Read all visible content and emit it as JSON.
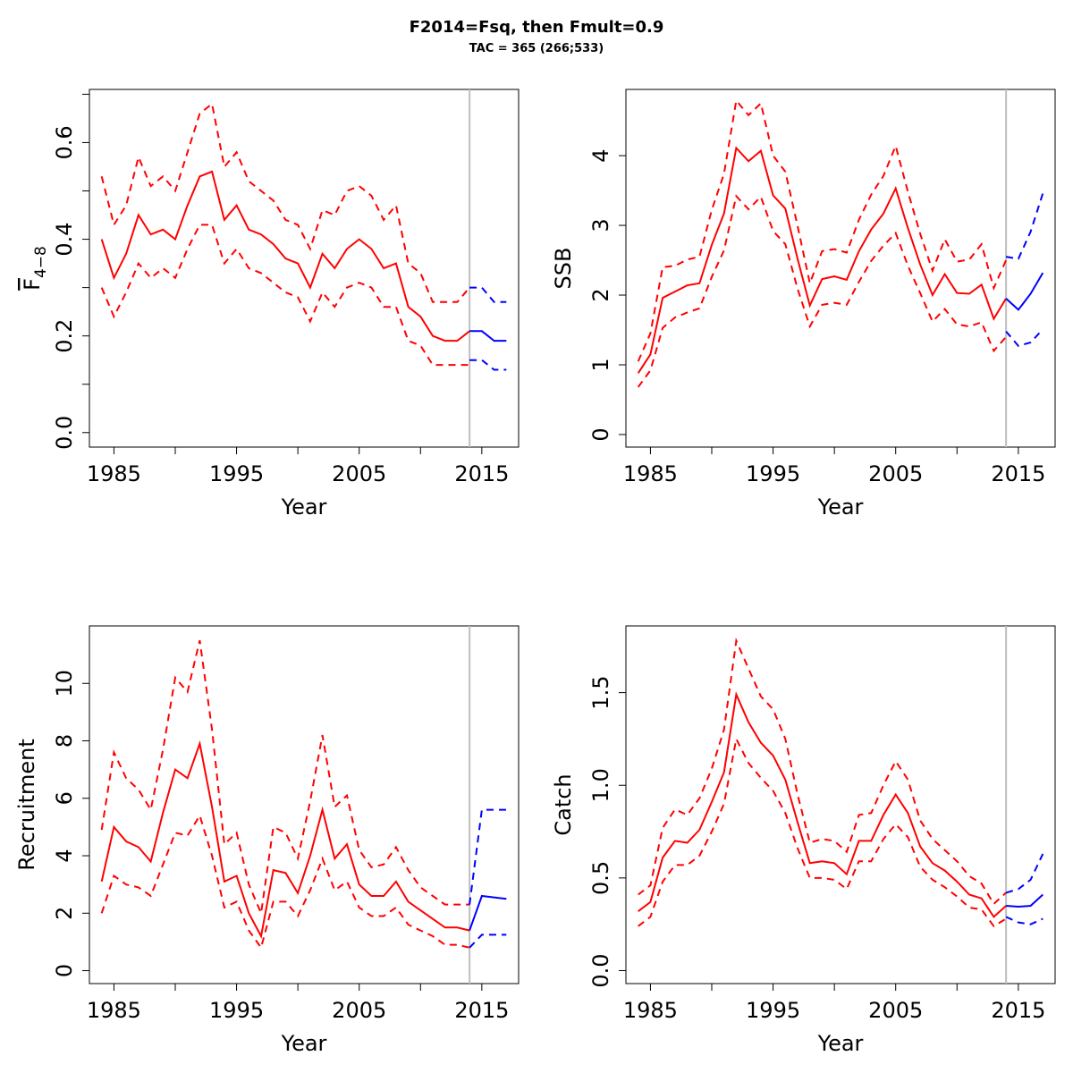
{
  "title": "F2014=Fsq, then Fmult=0.9",
  "subtitle": "TAC = 365 (266;533)",
  "colors": {
    "historic": "#ff0000",
    "forecast": "#0000ff",
    "divider": "#bebebe",
    "axis": "#000000"
  },
  "chart_data": [
    {
      "type": "line",
      "ylabel": "F",
      "ylabel_overline": true,
      "ylabel_sub": "4−8",
      "xlabel": "Year",
      "xlim": [
        1983,
        2018
      ],
      "ylim": [
        -0.03,
        0.71
      ],
      "x_ticks": [
        1985,
        1995,
        2005,
        2015
      ],
      "x_minor_ticks": [
        1990,
        2000,
        2010
      ],
      "y_ticks": [
        0.0,
        0.2,
        0.4,
        0.6
      ],
      "y_tick_labels": [
        "0.0",
        "0.2",
        "0.4",
        "0.6"
      ],
      "y_minor_ticks": [
        0.1,
        0.3,
        0.5,
        0.7
      ],
      "divider_x": 2014,
      "historic": {
        "x": [
          1984,
          1985,
          1986,
          1987,
          1988,
          1989,
          1990,
          1991,
          1992,
          1993,
          1994,
          1995,
          1996,
          1997,
          1998,
          1999,
          2000,
          2001,
          2002,
          2003,
          2004,
          2005,
          2006,
          2007,
          2008,
          2009,
          2010,
          2011,
          2012,
          2013,
          2014
        ],
        "estimate": [
          0.4,
          0.32,
          0.37,
          0.45,
          0.41,
          0.42,
          0.4,
          0.47,
          0.53,
          0.54,
          0.44,
          0.47,
          0.42,
          0.41,
          0.39,
          0.36,
          0.35,
          0.3,
          0.37,
          0.34,
          0.38,
          0.4,
          0.38,
          0.34,
          0.35,
          0.26,
          0.24,
          0.2,
          0.19,
          0.19,
          0.21
        ],
        "upper": [
          0.53,
          0.43,
          0.47,
          0.57,
          0.51,
          0.53,
          0.5,
          0.58,
          0.66,
          0.68,
          0.55,
          0.58,
          0.52,
          0.5,
          0.48,
          0.44,
          0.43,
          0.38,
          0.46,
          0.45,
          0.5,
          0.51,
          0.49,
          0.44,
          0.47,
          0.35,
          0.33,
          0.27,
          0.27,
          0.27,
          0.3
        ],
        "lower": [
          0.3,
          0.24,
          0.29,
          0.35,
          0.32,
          0.34,
          0.32,
          0.38,
          0.43,
          0.43,
          0.35,
          0.38,
          0.34,
          0.33,
          0.31,
          0.29,
          0.28,
          0.23,
          0.29,
          0.26,
          0.3,
          0.31,
          0.3,
          0.26,
          0.26,
          0.19,
          0.18,
          0.14,
          0.14,
          0.14,
          0.14
        ]
      },
      "forecast": {
        "x": [
          2014,
          2015,
          2016,
          2017
        ],
        "estimate": [
          0.21,
          0.21,
          0.19,
          0.19
        ],
        "upper": [
          0.3,
          0.3,
          0.27,
          0.27
        ],
        "lower": [
          0.15,
          0.15,
          0.13,
          0.13
        ]
      }
    },
    {
      "type": "line",
      "ylabel": "SSB",
      "xlabel": "Year",
      "xlim": [
        1983,
        2018
      ],
      "ylim": [
        -0.18,
        4.95
      ],
      "x_ticks": [
        1985,
        1995,
        2005,
        2015
      ],
      "x_minor_ticks": [
        1990,
        2000,
        2010
      ],
      "y_ticks": [
        0,
        1,
        2,
        3,
        4
      ],
      "y_tick_labels": [
        "0",
        "1",
        "2",
        "3",
        "4"
      ],
      "y_minor_ticks": [],
      "divider_x": 2014,
      "historic": {
        "x": [
          1984,
          1985,
          1986,
          1987,
          1988,
          1989,
          1990,
          1991,
          1992,
          1993,
          1994,
          1995,
          1996,
          1997,
          1998,
          1999,
          2000,
          2001,
          2002,
          2003,
          2004,
          2005,
          2006,
          2007,
          2008,
          2009,
          2010,
          2011,
          2012,
          2013,
          2014
        ],
        "estimate": [
          0.88,
          1.15,
          1.96,
          2.05,
          2.14,
          2.17,
          2.72,
          3.17,
          4.11,
          3.92,
          4.07,
          3.43,
          3.24,
          2.52,
          1.85,
          2.23,
          2.27,
          2.22,
          2.63,
          2.94,
          3.17,
          3.53,
          2.96,
          2.44,
          2.0,
          2.3,
          2.03,
          2.02,
          2.15,
          1.66,
          1.95
        ],
        "upper": [
          1.05,
          1.45,
          2.4,
          2.42,
          2.51,
          2.55,
          3.22,
          3.74,
          4.79,
          4.58,
          4.75,
          4.0,
          3.77,
          2.99,
          2.17,
          2.63,
          2.66,
          2.61,
          3.08,
          3.44,
          3.71,
          4.14,
          3.48,
          2.88,
          2.35,
          2.8,
          2.48,
          2.51,
          2.73,
          2.1,
          2.5
        ],
        "lower": [
          0.68,
          0.92,
          1.53,
          1.68,
          1.75,
          1.81,
          2.26,
          2.64,
          3.42,
          3.23,
          3.41,
          2.92,
          2.73,
          2.09,
          1.55,
          1.86,
          1.89,
          1.86,
          2.19,
          2.49,
          2.71,
          2.89,
          2.42,
          2.03,
          1.62,
          1.8,
          1.58,
          1.55,
          1.61,
          1.2,
          1.4
        ]
      },
      "forecast": {
        "x": [
          2014,
          2015,
          2016,
          2017
        ],
        "estimate": [
          1.95,
          1.79,
          2.02,
          2.32
        ],
        "upper": [
          2.55,
          2.52,
          2.91,
          3.46
        ],
        "lower": [
          1.48,
          1.27,
          1.32,
          1.51
        ]
      }
    },
    {
      "type": "line",
      "ylabel": "Recruitment",
      "xlabel": "Year",
      "xlim": [
        1983,
        2018
      ],
      "ylim": [
        -0.45,
        12.0
      ],
      "x_ticks": [
        1985,
        1995,
        2005,
        2015
      ],
      "x_minor_ticks": [
        1990,
        2000,
        2010
      ],
      "y_ticks": [
        0,
        2,
        4,
        6,
        8,
        10
      ],
      "y_tick_labels": [
        "0",
        "2",
        "4",
        "6",
        "8",
        "10"
      ],
      "y_minor_ticks": [],
      "divider_x": 2014,
      "historic": {
        "x": [
          1984,
          1985,
          1986,
          1987,
          1988,
          1989,
          1990,
          1991,
          1992,
          1993,
          1994,
          1995,
          1996,
          1997,
          1998,
          1999,
          2000,
          2001,
          2002,
          2003,
          2004,
          2005,
          2006,
          2007,
          2008,
          2009,
          2010,
          2011,
          2012,
          2013,
          2014
        ],
        "estimate": [
          3.1,
          5.0,
          4.5,
          4.3,
          3.8,
          5.5,
          7.0,
          6.7,
          7.9,
          5.7,
          3.1,
          3.3,
          2.0,
          1.2,
          3.5,
          3.4,
          2.7,
          4.0,
          5.6,
          3.9,
          4.4,
          3.0,
          2.6,
          2.6,
          3.1,
          2.4,
          2.1,
          1.8,
          1.5,
          1.5,
          1.4
        ],
        "upper": [
          4.9,
          7.6,
          6.7,
          6.3,
          5.6,
          7.7,
          10.2,
          9.7,
          11.5,
          8.4,
          4.4,
          4.8,
          3.0,
          2.0,
          5.0,
          4.8,
          3.9,
          5.9,
          8.2,
          5.7,
          6.1,
          4.2,
          3.6,
          3.7,
          4.3,
          3.5,
          2.9,
          2.6,
          2.3,
          2.3,
          2.3
        ],
        "lower": [
          2.0,
          3.3,
          3.0,
          2.9,
          2.6,
          3.7,
          4.8,
          4.7,
          5.4,
          4.0,
          2.2,
          2.4,
          1.4,
          0.8,
          2.4,
          2.4,
          1.9,
          2.8,
          3.9,
          2.8,
          3.1,
          2.2,
          1.9,
          1.9,
          2.2,
          1.6,
          1.4,
          1.2,
          0.9,
          0.9,
          0.8
        ]
      },
      "forecast": {
        "x": [
          2014,
          2015,
          2016,
          2017
        ],
        "estimate": [
          1.4,
          2.6,
          2.55,
          2.5
        ],
        "upper": [
          2.3,
          5.6,
          5.6,
          5.6
        ],
        "lower": [
          0.8,
          1.25,
          1.25,
          1.25
        ]
      }
    },
    {
      "type": "line",
      "ylabel": "Catch",
      "xlabel": "Year",
      "xlim": [
        1983,
        2018
      ],
      "ylim": [
        -0.07,
        1.86
      ],
      "x_ticks": [
        1985,
        1995,
        2005,
        2015
      ],
      "x_minor_ticks": [
        1990,
        2000,
        2010
      ],
      "y_ticks": [
        0.0,
        0.5,
        1.0,
        1.5
      ],
      "y_tick_labels": [
        "0.0",
        "0.5",
        "1.0",
        "1.5"
      ],
      "y_minor_ticks": [],
      "divider_x": 2014,
      "historic": {
        "x": [
          1984,
          1985,
          1986,
          1987,
          1988,
          1989,
          1990,
          1991,
          1992,
          1993,
          1994,
          1995,
          1996,
          1997,
          1998,
          1999,
          2000,
          2001,
          2002,
          2003,
          2004,
          2005,
          2006,
          2007,
          2008,
          2009,
          2010,
          2011,
          2012,
          2013,
          2014
        ],
        "estimate": [
          0.32,
          0.37,
          0.61,
          0.7,
          0.69,
          0.76,
          0.91,
          1.07,
          1.49,
          1.34,
          1.23,
          1.16,
          1.03,
          0.8,
          0.58,
          0.59,
          0.58,
          0.52,
          0.7,
          0.7,
          0.84,
          0.95,
          0.85,
          0.67,
          0.58,
          0.54,
          0.48,
          0.41,
          0.39,
          0.29,
          0.35
        ],
        "upper": [
          0.41,
          0.46,
          0.77,
          0.87,
          0.84,
          0.93,
          1.09,
          1.3,
          1.78,
          1.63,
          1.48,
          1.41,
          1.25,
          0.95,
          0.69,
          0.71,
          0.7,
          0.64,
          0.84,
          0.85,
          1.0,
          1.13,
          1.03,
          0.81,
          0.71,
          0.65,
          0.59,
          0.51,
          0.47,
          0.36,
          0.42
        ],
        "lower": [
          0.24,
          0.29,
          0.48,
          0.57,
          0.57,
          0.62,
          0.75,
          0.9,
          1.25,
          1.12,
          1.04,
          0.97,
          0.85,
          0.66,
          0.5,
          0.5,
          0.49,
          0.44,
          0.59,
          0.59,
          0.71,
          0.79,
          0.72,
          0.56,
          0.49,
          0.45,
          0.4,
          0.34,
          0.33,
          0.24,
          0.28
        ]
      },
      "forecast": {
        "x": [
          2014,
          2015,
          2016,
          2017
        ],
        "estimate": [
          0.35,
          0.345,
          0.35,
          0.41
        ],
        "upper": [
          0.42,
          0.44,
          0.49,
          0.63
        ],
        "lower": [
          0.29,
          0.26,
          0.25,
          0.28
        ]
      }
    }
  ]
}
